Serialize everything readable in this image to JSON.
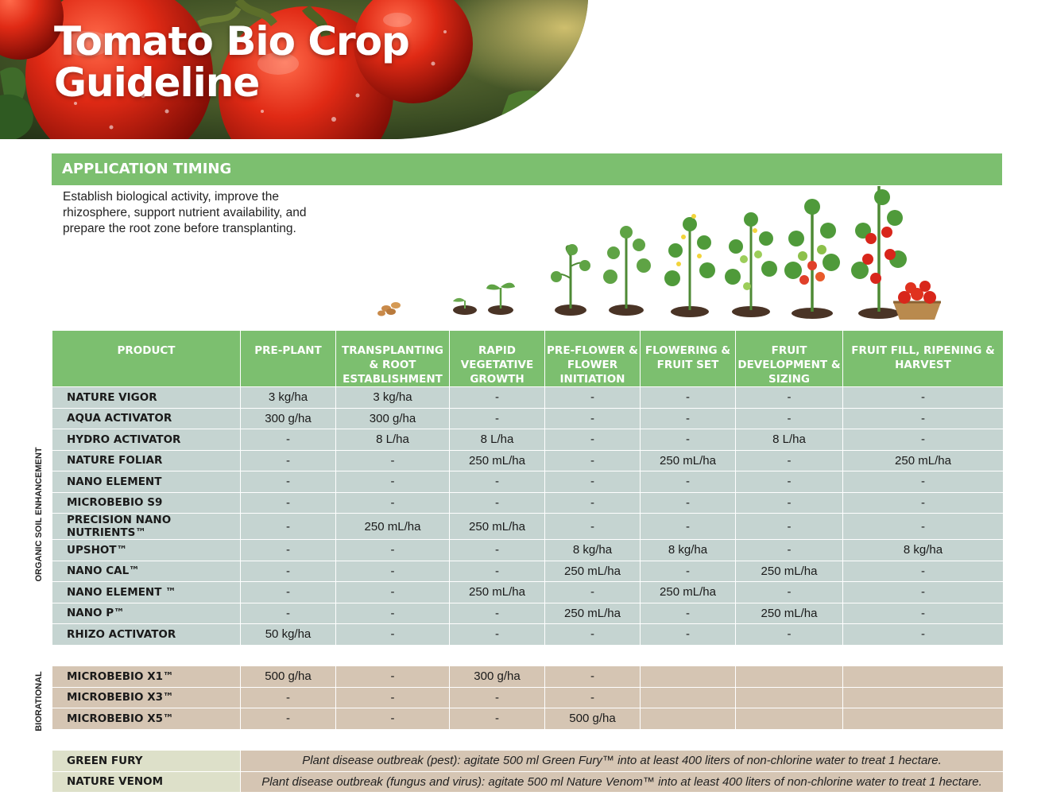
{
  "header": {
    "title_line1": "Tomato Bio Crop",
    "title_line2": "Guideline"
  },
  "section": {
    "title": "APPLICATION TIMING",
    "description": "Establish biological activity, improve the rhizosphere, support nutrient availability, and prepare the root zone before transplanting."
  },
  "table": {
    "columns": [
      "PRODUCT",
      "PRE-PLANT",
      "TRANSPLANTING & ROOT ESTABLISHMENT",
      "RAPID VEGETATIVE GROWTH",
      "PRE-FLOWER & FLOWER INITIATION",
      "FLOWERING & FRUIT SET",
      "FRUIT DEVELOPMENT & SIZING",
      "FRUIT FILL, RIPENING & HARVEST"
    ],
    "groups": {
      "organic": {
        "label": "ORGANIC SOIL ENHANCEMENT",
        "rows": [
          {
            "product": "NATURE VIGOR",
            "cells": [
              "3 kg/ha",
              "3 kg/ha",
              "-",
              "-",
              "-",
              "-",
              "-"
            ]
          },
          {
            "product": "AQUA ACTIVATOR",
            "cells": [
              "300 g/ha",
              "300 g/ha",
              "-",
              "-",
              "-",
              "-",
              "-"
            ]
          },
          {
            "product": "HYDRO ACTIVATOR",
            "cells": [
              "-",
              "8 L/ha",
              "8  L/ha",
              "-",
              "-",
              "8  L/ha",
              "-"
            ]
          },
          {
            "product": "NATURE FOLIAR",
            "cells": [
              "-",
              "-",
              "250 mL/ha",
              "-",
              "250 mL/ha",
              "-",
              "250 mL/ha"
            ]
          },
          {
            "product": "NANO ELEMENT",
            "cells": [
              "-",
              "-",
              "-",
              "-",
              "-",
              "-",
              "-"
            ]
          },
          {
            "product": "MICROBEBIO S9",
            "cells": [
              "-",
              "-",
              "-",
              "-",
              "-",
              "-",
              "-"
            ]
          },
          {
            "product": "PRECISION NANO NUTRIENTS™",
            "cells": [
              "-",
              "250 mL/ha",
              "250 mL/ha",
              "-",
              "-",
              "-",
              "-"
            ]
          },
          {
            "product": "UPSHOT™",
            "cells": [
              "-",
              "-",
              "-",
              "8 kg/ha",
              "8 kg/ha",
              "-",
              "8 kg/ha"
            ]
          },
          {
            "product": "NANO CAL™",
            "cells": [
              "-",
              "-",
              "-",
              "250 mL/ha",
              "-",
              "250 mL/ha",
              "-"
            ]
          },
          {
            "product": "NANO ELEMENT ™",
            "cells": [
              "-",
              "-",
              "250 mL/ha",
              "-",
              "250 mL/ha",
              "-",
              "-"
            ]
          },
          {
            "product": "NANO P™",
            "cells": [
              "-",
              "-",
              "-",
              "250 mL/ha",
              "-",
              "250 mL/ha",
              "-"
            ]
          },
          {
            "product": "RHIZO ACTIVATOR",
            "cells": [
              "50 kg/ha",
              "-",
              "-",
              "-",
              "-",
              "-",
              "-"
            ]
          }
        ]
      },
      "biorational": {
        "label": "BIORATIONAL",
        "rows": [
          {
            "product": "MICROBEBIO X1™",
            "cells": [
              "500 g/ha",
              "-",
              "300 g/ha",
              "-",
              "",
              "",
              ""
            ]
          },
          {
            "product": "MICROBEBIO X3™",
            "cells": [
              "-",
              "-",
              "-",
              "-",
              "",
              "",
              ""
            ]
          },
          {
            "product": "MICROBEBIO X5™",
            "cells": [
              "-",
              "-",
              "-",
              "500 g/ha",
              "",
              "",
              ""
            ]
          }
        ],
        "notes": [
          {
            "product": "GREEN FURY",
            "text": "Plant disease outbreak (pest): agitate 500 ml Green Fury™ into at least 400 liters of non-chlorine water to treat 1 hectare."
          },
          {
            "product": "NATURE VENOM",
            "text": "Plant disease outbreak (fungus and virus): agitate 500 ml Nature Venom™ into at least 400 liters of non-chlorine water to treat 1 hectare."
          }
        ]
      }
    }
  },
  "colors": {
    "header_green": "#7cbf6f",
    "organic_row": "#c5d4d1",
    "biorational_row": "#d5c5b3",
    "note_product": "#dde0c9"
  },
  "icons": [
    "tomato-hero-photo",
    "tomato-growth-stages-illustration"
  ]
}
